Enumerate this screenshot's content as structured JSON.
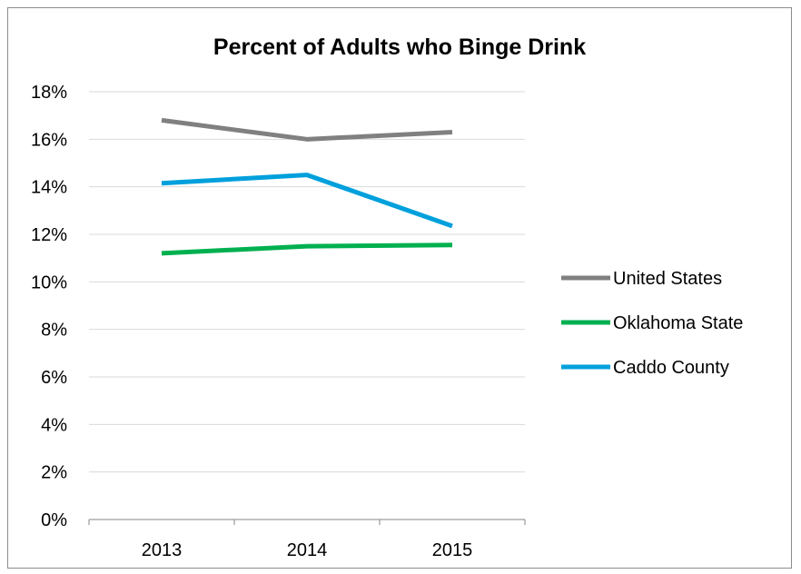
{
  "chart_data": {
    "type": "line",
    "title": "Percent of Adults who Binge Drink",
    "categories": [
      "2013",
      "2014",
      "2015"
    ],
    "ylim": [
      0,
      18
    ],
    "y_ticks": [
      "0%",
      "2%",
      "4%",
      "6%",
      "8%",
      "10%",
      "12%",
      "14%",
      "16%",
      "18%"
    ],
    "y_unit": "%",
    "grid": true,
    "legend_position": "right",
    "series": [
      {
        "name": "United States",
        "values": [
          16.8,
          16.0,
          16.3
        ],
        "color": "#808080"
      },
      {
        "name": "Oklahoma State",
        "values": [
          11.2,
          11.5,
          11.55
        ],
        "color": "#00b050"
      },
      {
        "name": "Caddo County",
        "values": [
          14.15,
          14.5,
          12.35
        ],
        "color": "#00a0dc"
      }
    ]
  }
}
